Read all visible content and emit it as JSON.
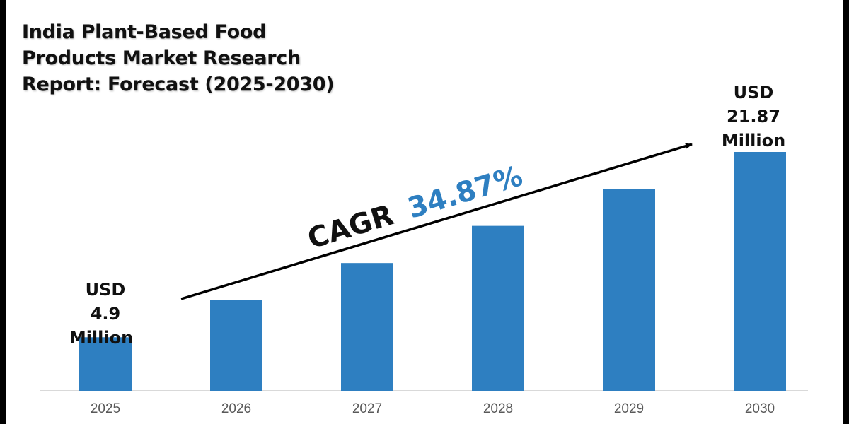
{
  "title_lines": [
    "India Plant-Based Food",
    "Products Market Research",
    "Report: Forecast (2025-2030)"
  ],
  "colors": {
    "bar": "#2e7fc1",
    "cagr_value": "#2e7fc1",
    "text": "#111111",
    "axis": "#d9d9d9",
    "tick": "#595959",
    "frame": "#000000"
  },
  "annotations": {
    "cagr_label": "CAGR",
    "cagr_value": "34.87%",
    "start_label": [
      "USD",
      "4.9",
      "Million"
    ],
    "end_label": [
      "USD",
      "21.87",
      "Million"
    ]
  },
  "chart_data": {
    "type": "bar",
    "title": "India Plant-Based Food Products Market Research Report: Forecast (2025-2030)",
    "xlabel": "",
    "ylabel": "",
    "categories": [
      "2025",
      "2026",
      "2027",
      "2028",
      "2029",
      "2030"
    ],
    "values": [
      4.9,
      8.3,
      11.7,
      15.1,
      18.5,
      21.87
    ],
    "value_unit": "USD Million",
    "labeled_values": {
      "2025": 4.9,
      "2030": 21.87
    },
    "cagr_percent": 34.87,
    "ylim": [
      0,
      21.87
    ],
    "grid": false,
    "legend": "none",
    "y_axis_visible": false
  }
}
